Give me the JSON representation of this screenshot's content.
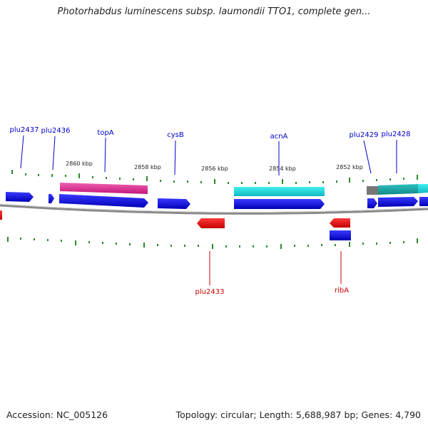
{
  "title": "Photorhabdus luminescens subsp. laumondii TTO1, complete gen...",
  "accession": "Accession: NC_005126",
  "summary": "Topology: circular; Length: 5,688,987 bp; Genes: 4,790",
  "scale_labels": [
    "2860 kbp",
    "2858 kbp",
    "2856 kbp",
    "2854 kbp",
    "2852 kbp"
  ],
  "gene_labels_top": [
    "plu2437",
    "plu2436",
    "topA",
    "cysB",
    "acnA",
    "plu2429",
    "plu2428"
  ],
  "gene_labels_bottom": [
    "plu2433",
    "ribA"
  ],
  "colors": {
    "forward_gene": "#1010e0",
    "reverse_gene": "#ee1111",
    "pink_feature": "#e8359a",
    "cyan_feature": "#22d8dc",
    "teal_feature": "#1fb3b3",
    "grey_feature": "#777777",
    "backbone": "#8a8a8a",
    "tick": "#2a8a2a",
    "label_top": "#0000cc",
    "label_bottom": "#cc0000"
  }
}
